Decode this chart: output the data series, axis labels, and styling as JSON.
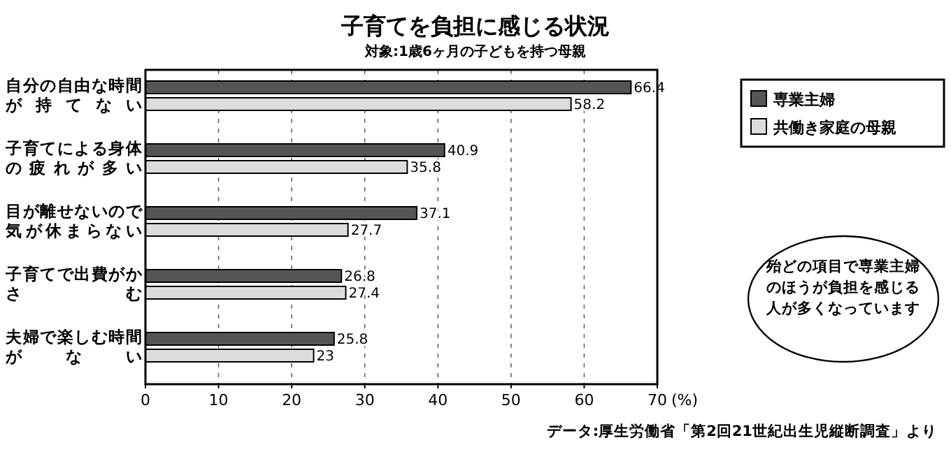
{
  "chart_data": {
    "type": "bar",
    "orientation": "horizontal",
    "title": "子育てを負担に感じる状況",
    "subtitle": "対象:1歳6ヶ月の子どもを持つ母親",
    "xlabel": "(%)",
    "categories": [
      "自分の自由な時間が持てない",
      "子育てによる身体の疲れが多い",
      "目が離せないので気が休まらない",
      "子育てで出費がかさむ",
      "夫婦で楽しむ時間がない"
    ],
    "series": [
      {
        "name": "専業主婦",
        "color": "#555555",
        "values": [
          66.4,
          40.9,
          37.1,
          26.8,
          25.8
        ]
      },
      {
        "name": "共働き家庭の母親",
        "color": "#dcdcdc",
        "values": [
          58.2,
          35.8,
          27.7,
          27.4,
          23
        ]
      }
    ],
    "xlim": [
      0,
      70
    ],
    "xticks": [
      0,
      10,
      20,
      30,
      40,
      50,
      60,
      70
    ],
    "grid": "x",
    "legend": "top right",
    "data_labels": true,
    "annotations": [
      "殆どの項目で専業主婦のほうが負担を感じる人が多くなっています",
      "データ:厚生労働省「第2回21世紀出生児縦断調査」より"
    ]
  }
}
